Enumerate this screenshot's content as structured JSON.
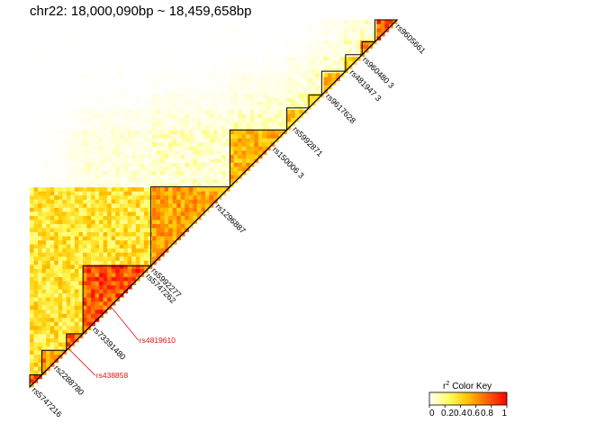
{
  "chart_data": {
    "type": "heatmap",
    "title": "chr22: 18,000,090bp ~ 18,459,658bp",
    "matrix_shape": "upper-triangle LD heatmap (r²)",
    "snp_labels_black": [
      "rs5747216",
      "rs2288780",
      "rs73391480",
      "rs5747262",
      "rs5992277",
      "rs1296887",
      "rs150006 3",
      "rs5992871",
      "rs9617628",
      "rs481947 3",
      "rs960480 3",
      "rs9605661"
    ],
    "snp_labels_red": [
      "rs4819610",
      "rs438858"
    ],
    "ld_blocks": [
      {
        "start": 0.0,
        "end": 0.033,
        "r2": 0.85
      },
      {
        "start": 0.033,
        "end": 0.1,
        "r2": 0.75
      },
      {
        "start": 0.1,
        "end": 0.145,
        "r2": 0.85
      },
      {
        "start": 0.145,
        "end": 0.33,
        "r2": 0.9
      },
      {
        "start": 0.33,
        "end": 0.545,
        "r2": 0.7
      },
      {
        "start": 0.545,
        "end": 0.7,
        "r2": 0.65
      },
      {
        "start": 0.7,
        "end": 0.76,
        "r2": 0.6
      },
      {
        "start": 0.76,
        "end": 0.795,
        "r2": 0.5
      },
      {
        "start": 0.795,
        "end": 0.86,
        "r2": 0.65
      },
      {
        "start": 0.86,
        "end": 0.905,
        "r2": 0.55
      },
      {
        "start": 0.905,
        "end": 0.94,
        "r2": 0.7
      },
      {
        "start": 0.94,
        "end": 1.0,
        "r2": 0.9
      }
    ],
    "legend": {
      "title": "Color Key",
      "superscript": "2",
      "symbol": "r",
      "tick_labels": [
        "0",
        "0.2",
        "0.4",
        "0.6",
        "0.8",
        "1"
      ],
      "placement": "bottom-right",
      "colors": [
        "#ffffff",
        "#ffff60",
        "#ffc000",
        "#ff6000",
        "#ff0000"
      ]
    }
  }
}
